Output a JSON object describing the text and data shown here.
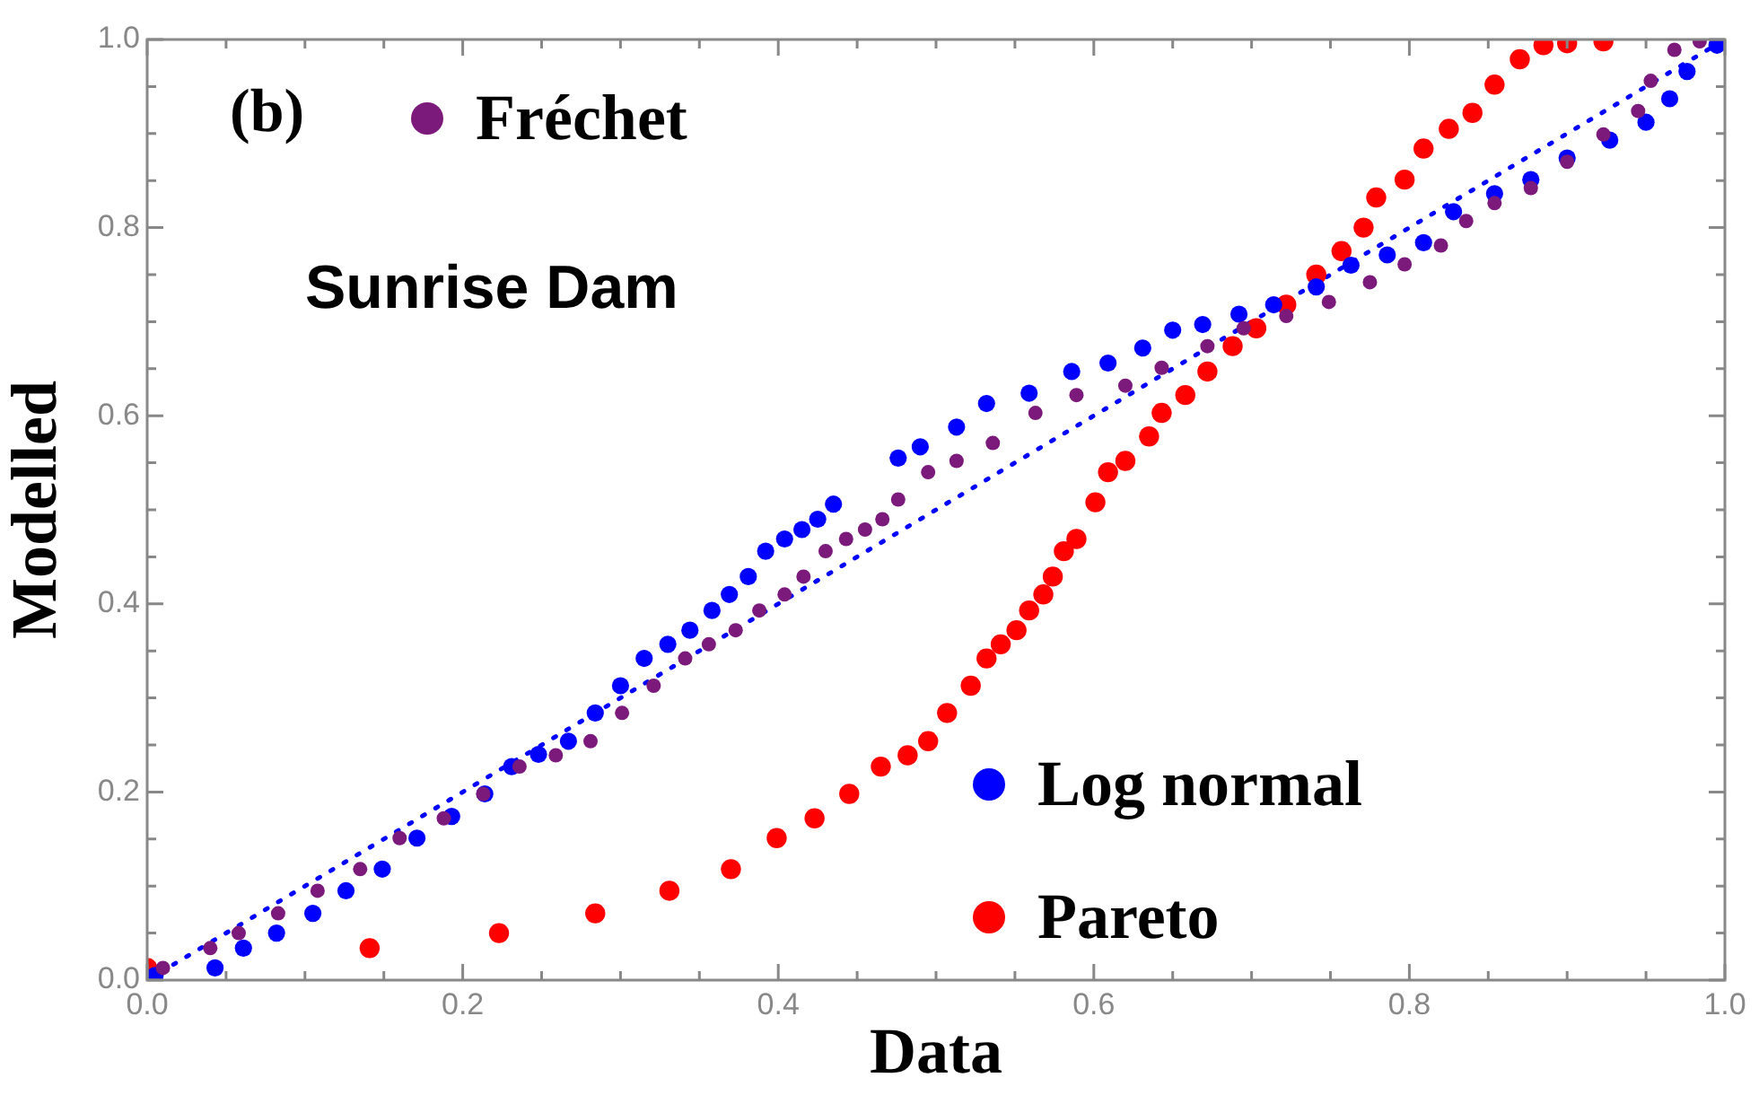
{
  "chart_data": {
    "type": "scatter",
    "xlabel": "Data",
    "ylabel": "Modelled",
    "annotations": [
      "(b)",
      "Sunrise Dam"
    ],
    "xlim": [
      0,
      1
    ],
    "ylim": [
      0,
      1
    ],
    "xticks": [
      {
        "value": 0,
        "label": "0.0"
      },
      {
        "value": 0.05,
        "label": null
      },
      {
        "value": 0.1,
        "label": null
      },
      {
        "value": 0.15,
        "label": null
      },
      0.2,
      {
        "value": 0.25,
        "label": null
      },
      {
        "value": 0.3,
        "label": null
      },
      {
        "value": 0.35,
        "label": null
      },
      0.4,
      {
        "value": 0.45,
        "label": null
      },
      {
        "value": 0.5,
        "label": null
      },
      {
        "value": 0.55,
        "label": null
      },
      0.6,
      {
        "value": 0.65,
        "label": null
      },
      {
        "value": 0.7,
        "label": null
      },
      {
        "value": 0.75,
        "label": null
      },
      0.8,
      {
        "value": 0.85,
        "label": null
      },
      {
        "value": 0.9,
        "label": null
      },
      {
        "value": 0.95,
        "label": null
      },
      {
        "value": 1,
        "label": "1.0"
      }
    ],
    "yticks": [
      {
        "value": 0,
        "label": "0.0"
      },
      {
        "value": 0.05,
        "label": null
      },
      {
        "value": 0.1,
        "label": null
      },
      {
        "value": 0.15,
        "label": null
      },
      0.2,
      {
        "value": 0.25,
        "label": null
      },
      {
        "value": 0.3,
        "label": null
      },
      {
        "value": 0.35,
        "label": null
      },
      0.4,
      {
        "value": 0.45,
        "label": null
      },
      {
        "value": 0.5,
        "label": null
      },
      {
        "value": 0.55,
        "label": null
      },
      0.6,
      {
        "value": 0.65,
        "label": null
      },
      {
        "value": 0.7,
        "label": null
      },
      {
        "value": 0.75,
        "label": null
      },
      0.8,
      {
        "value": 0.85,
        "label": null
      },
      {
        "value": 0.9,
        "label": null
      },
      {
        "value": 0.95,
        "label": null
      },
      {
        "value": 1,
        "label": "1.0"
      }
    ],
    "grid": false,
    "legend": "left",
    "series": [
      {
        "name": "Fréchet",
        "color": "#7b1a7b",
        "marker": "circle",
        "x": [
          0.01,
          0.04,
          0.058,
          0.083,
          0.108,
          0.135,
          0.16,
          0.188,
          0.213,
          0.236,
          0.259,
          0.281,
          0.301,
          0.321,
          0.341,
          0.356,
          0.373,
          0.388,
          0.404,
          0.416,
          0.43,
          0.443,
          0.455,
          0.466,
          0.476,
          0.495,
          0.513,
          0.536,
          0.563,
          0.589,
          0.62,
          0.643,
          0.672,
          0.695,
          0.722,
          0.749,
          0.775,
          0.797,
          0.82,
          0.836,
          0.854,
          0.877,
          0.9,
          0.923,
          0.945,
          0.953,
          0.968,
          0.984
        ],
        "values": [
          0.013,
          0.034,
          0.05,
          0.071,
          0.095,
          0.118,
          0.151,
          0.172,
          0.198,
          0.227,
          0.239,
          0.254,
          0.284,
          0.313,
          0.342,
          0.357,
          0.372,
          0.393,
          0.41,
          0.429,
          0.456,
          0.469,
          0.479,
          0.49,
          0.511,
          0.54,
          0.552,
          0.571,
          0.603,
          0.622,
          0.632,
          0.651,
          0.674,
          0.693,
          0.706,
          0.721,
          0.742,
          0.761,
          0.781,
          0.807,
          0.826,
          0.842,
          0.87,
          0.899,
          0.924,
          0.956,
          0.989,
          0.998
        ]
      },
      {
        "name": "Log normal",
        "color": "#0000ff",
        "marker": "circle",
        "x": [
          0.005,
          0.043,
          0.061,
          0.082,
          0.105,
          0.126,
          0.149,
          0.171,
          0.193,
          0.214,
          0.231,
          0.248,
          0.267,
          0.284,
          0.3,
          0.315,
          0.33,
          0.344,
          0.358,
          0.369,
          0.381,
          0.392,
          0.404,
          0.415,
          0.425,
          0.435,
          0.476,
          0.49,
          0.513,
          0.532,
          0.559,
          0.586,
          0.609,
          0.631,
          0.65,
          0.669,
          0.692,
          0.714,
          0.741,
          0.763,
          0.786,
          0.809,
          0.828,
          0.854,
          0.877,
          0.9,
          0.927,
          0.95,
          0.965,
          0.976,
          0.995
        ],
        "values": [
          0.005,
          0.013,
          0.034,
          0.05,
          0.071,
          0.095,
          0.118,
          0.151,
          0.174,
          0.198,
          0.227,
          0.24,
          0.254,
          0.284,
          0.313,
          0.342,
          0.357,
          0.372,
          0.393,
          0.41,
          0.429,
          0.456,
          0.469,
          0.479,
          0.49,
          0.506,
          0.555,
          0.567,
          0.588,
          0.613,
          0.624,
          0.647,
          0.656,
          0.672,
          0.691,
          0.697,
          0.708,
          0.718,
          0.737,
          0.76,
          0.771,
          0.784,
          0.817,
          0.836,
          0.851,
          0.874,
          0.893,
          0.912,
          0.937,
          0.966,
          0.994
        ]
      },
      {
        "name": "Pareto",
        "color": "#ff0000",
        "marker": "circle",
        "x": [
          0.0,
          0.141,
          0.223,
          0.284,
          0.331,
          0.37,
          0.399,
          0.423,
          0.445,
          0.465,
          0.482,
          0.495,
          0.507,
          0.522,
          0.532,
          0.541,
          0.551,
          0.559,
          0.568,
          0.574,
          0.581,
          0.589,
          0.601,
          0.609,
          0.62,
          0.635,
          0.643,
          0.658,
          0.672,
          0.688,
          0.703,
          0.722,
          0.741,
          0.757,
          0.771,
          0.779,
          0.797,
          0.809,
          0.825,
          0.84,
          0.854,
          0.87,
          0.885,
          0.9,
          0.923
        ],
        "values": [
          0.013,
          0.034,
          0.05,
          0.071,
          0.095,
          0.118,
          0.151,
          0.172,
          0.198,
          0.227,
          0.239,
          0.254,
          0.284,
          0.313,
          0.342,
          0.357,
          0.372,
          0.393,
          0.41,
          0.429,
          0.456,
          0.469,
          0.508,
          0.54,
          0.552,
          0.578,
          0.603,
          0.622,
          0.647,
          0.674,
          0.693,
          0.718,
          0.75,
          0.775,
          0.8,
          0.832,
          0.851,
          0.884,
          0.905,
          0.922,
          0.952,
          0.979,
          0.994,
          0.996,
          0.998
        ]
      },
      {
        "type": "line",
        "color": "#0000ff",
        "line_style": "dotted",
        "x": [
          0,
          1
        ],
        "values": [
          0,
          1
        ]
      }
    ]
  }
}
